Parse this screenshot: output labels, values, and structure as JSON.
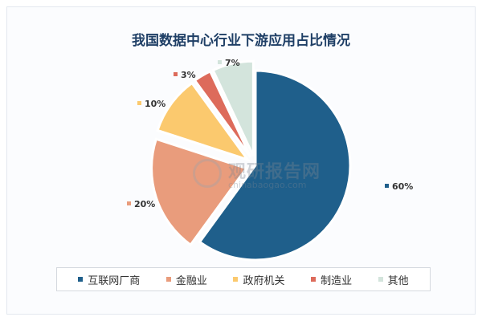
{
  "chart_data": {
    "type": "pie",
    "title": "我国数据中心行业下游应用占比情况",
    "categories": [
      "互联网厂商",
      "金融业",
      "政府机关",
      "制造业",
      "其他"
    ],
    "values": [
      60,
      20,
      10,
      3,
      7
    ],
    "value_labels": [
      "60%",
      "20%",
      "10%",
      "3%",
      "7%"
    ],
    "colors": [
      "#1f5f8b",
      "#e99c7c",
      "#fbc96e",
      "#dd6b5b",
      "#d3e4dc"
    ],
    "exploded": true,
    "legend_position": "bottom"
  },
  "watermark": {
    "name": "观研报告网",
    "url": "chinabaogao.com"
  }
}
